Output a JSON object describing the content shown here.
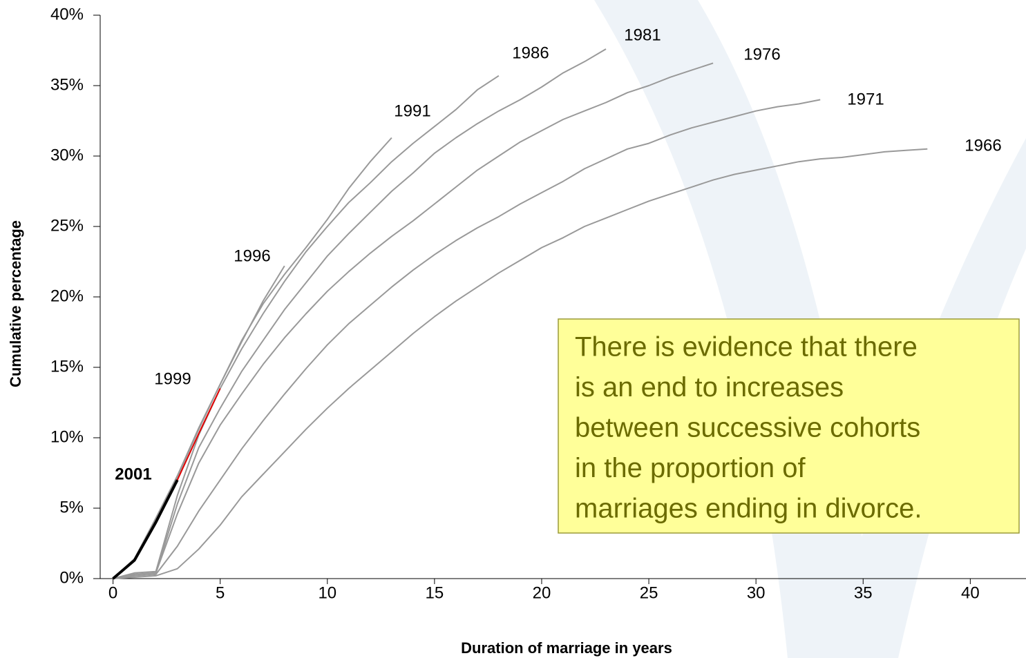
{
  "chart_data": {
    "type": "line",
    "xlabel": "Duration of marriage in years",
    "ylabel": "Cumulative percentage",
    "x": [
      0,
      1,
      2,
      3,
      4,
      5,
      6,
      7,
      8,
      9,
      10,
      11,
      12,
      13,
      14,
      15,
      16,
      17,
      18,
      19,
      20,
      21,
      22,
      23,
      24,
      25,
      26,
      27,
      28,
      29,
      30,
      31,
      32,
      33,
      34,
      35,
      36,
      37,
      38
    ],
    "series": [
      {
        "name": "1966",
        "color": "#999999",
        "values": [
          0,
          0.1,
          0.2,
          0.7,
          2.1,
          3.8,
          5.8,
          7.4,
          9.0,
          10.6,
          12.1,
          13.5,
          14.8,
          16.1,
          17.4,
          18.6,
          19.7,
          20.7,
          21.7,
          22.6,
          23.5,
          24.2,
          25.0,
          25.6,
          26.2,
          26.8,
          27.3,
          27.8,
          28.3,
          28.7,
          29.0,
          29.3,
          29.6,
          29.8,
          29.9,
          30.1,
          30.3,
          30.4,
          30.5
        ]
      },
      {
        "name": "1971",
        "color": "#999999",
        "values": [
          0,
          0.2,
          0.3,
          2.3,
          4.8,
          7.0,
          9.2,
          11.2,
          13.1,
          14.9,
          16.6,
          18.1,
          19.4,
          20.7,
          21.9,
          23.0,
          24.0,
          24.9,
          25.7,
          26.6,
          27.4,
          28.2,
          29.1,
          29.8,
          30.5,
          30.9,
          31.5,
          32.0,
          32.4,
          32.8,
          33.2,
          33.5,
          33.7,
          34.0,
          null,
          null,
          null,
          null,
          null
        ]
      },
      {
        "name": "1976",
        "color": "#999999",
        "values": [
          0,
          0.3,
          0.4,
          4.6,
          8.2,
          10.9,
          13.1,
          15.2,
          17.1,
          18.8,
          20.4,
          21.8,
          23.1,
          24.3,
          25.4,
          26.6,
          27.8,
          29.0,
          30.0,
          31.0,
          31.8,
          32.6,
          33.2,
          33.8,
          34.5,
          35.0,
          35.6,
          36.1,
          36.6,
          null,
          null,
          null,
          null,
          null,
          null,
          null,
          null,
          null,
          null
        ]
      },
      {
        "name": "1981",
        "color": "#999999",
        "values": [
          0,
          0.3,
          0.4,
          5.3,
          9.3,
          12.1,
          14.7,
          16.9,
          19.1,
          21.0,
          22.9,
          24.5,
          26.0,
          27.5,
          28.8,
          30.2,
          31.3,
          32.3,
          33.2,
          34.0,
          34.9,
          35.9,
          36.7,
          37.6,
          null,
          null,
          null,
          null,
          null,
          null,
          null,
          null,
          null,
          null,
          null,
          null,
          null,
          null,
          null
        ]
      },
      {
        "name": "1986",
        "color": "#999999",
        "values": [
          0,
          0.4,
          0.5,
          5.9,
          10.2,
          13.5,
          16.3,
          18.8,
          21.1,
          23.2,
          25.0,
          26.7,
          28.1,
          29.6,
          30.9,
          32.1,
          33.3,
          34.7,
          35.7,
          null,
          null,
          null,
          null,
          null,
          null,
          null,
          null,
          null,
          null,
          null,
          null,
          null,
          null,
          null,
          null,
          null,
          null,
          null,
          null
        ]
      },
      {
        "name": "1991",
        "color": "#999999",
        "values": [
          0,
          1.4,
          4.2,
          7.2,
          10.6,
          13.8,
          16.9,
          19.5,
          21.6,
          23.5,
          25.5,
          27.7,
          29.6,
          31.3,
          null,
          null,
          null,
          null,
          null,
          null,
          null,
          null,
          null,
          null,
          null,
          null,
          null,
          null,
          null,
          null,
          null,
          null,
          null,
          null,
          null,
          null,
          null,
          null,
          null
        ]
      },
      {
        "name": "1996",
        "color": "#999999",
        "values": [
          0,
          1.4,
          4.3,
          7.3,
          10.7,
          13.8,
          16.8,
          19.7,
          22.2,
          null,
          null,
          null,
          null,
          null,
          null,
          null,
          null,
          null,
          null,
          null,
          null,
          null,
          null,
          null,
          null,
          null,
          null,
          null,
          null,
          null,
          null,
          null,
          null,
          null,
          null,
          null,
          null,
          null,
          null
        ]
      },
      {
        "name": "1999",
        "color": "#e00000",
        "values": [
          0,
          1.3,
          4.0,
          7.0,
          10.3,
          13.5,
          null,
          null,
          null,
          null,
          null,
          null,
          null,
          null,
          null,
          null,
          null,
          null,
          null,
          null,
          null,
          null,
          null,
          null,
          null,
          null,
          null,
          null,
          null,
          null,
          null,
          null,
          null,
          null,
          null,
          null,
          null,
          null,
          null
        ]
      },
      {
        "name": "2001",
        "color": "#000000",
        "values": [
          0,
          1.3,
          4.0,
          7.0,
          null,
          null,
          null,
          null,
          null,
          null,
          null,
          null,
          null,
          null,
          null,
          null,
          null,
          null,
          null,
          null,
          null,
          null,
          null,
          null,
          null,
          null,
          null,
          null,
          null,
          null,
          null,
          null,
          null,
          null,
          null,
          null,
          null,
          null,
          null
        ]
      }
    ],
    "xlim": [
      -0.6,
      42.6
    ],
    "ylim": [
      0,
      40
    ],
    "xticks": [
      0,
      5,
      10,
      15,
      20,
      25,
      30,
      35,
      40
    ],
    "yticks": [
      {
        "value": 0,
        "label": "0%"
      },
      {
        "value": 5,
        "label": "5%"
      },
      {
        "value": 10,
        "label": "10%"
      },
      {
        "value": 15,
        "label": "15%"
      },
      {
        "value": 20,
        "label": "20%"
      },
      {
        "value": 25,
        "label": "25%"
      },
      {
        "value": 30,
        "label": "30%"
      },
      {
        "value": 35,
        "label": "35%"
      },
      {
        "value": 40,
        "label": "40%"
      }
    ],
    "annotation": [
      "There is evidence that there",
      "is an end to increases",
      "between successive cohorts",
      "in the proportion of",
      "marriages ending in divorce."
    ]
  }
}
